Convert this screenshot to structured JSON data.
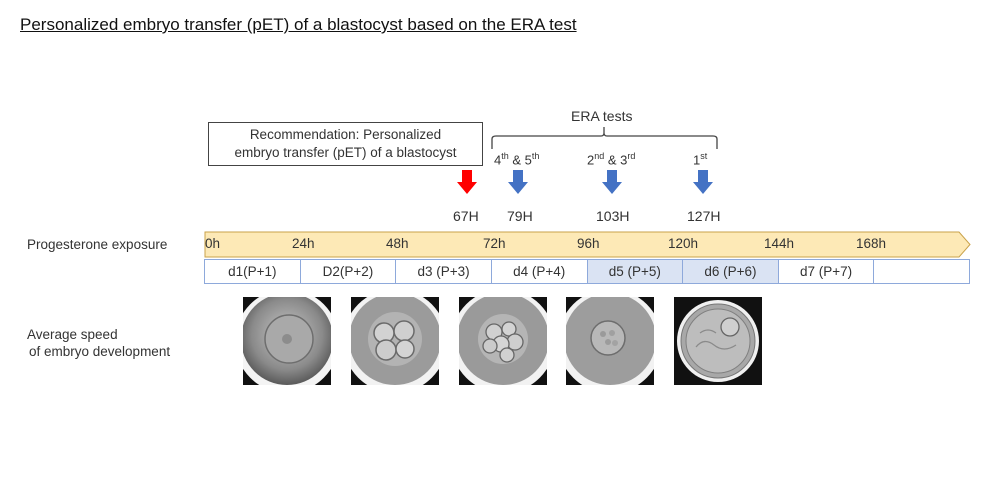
{
  "title": "Personalized embryo transfer (pET) of a blastocyst based on the ERA test",
  "recommendation": {
    "line1": "Recommendation: Personalized",
    "line2": "embryo transfer (pET) of a blastocyst"
  },
  "era": {
    "label": "ERA tests",
    "tests": [
      {
        "a": "4",
        "a_sup": "th",
        "mid": " & 5",
        "b_sup": "th",
        "hour": "79H"
      },
      {
        "a": "2",
        "a_sup": "nd",
        "mid": " & 3",
        "b_sup": "rd",
        "hour": "103H"
      },
      {
        "a": "1",
        "a_sup": "st",
        "mid": "",
        "b_sup": "",
        "hour": "127H"
      }
    ],
    "recommended_hour": "67H"
  },
  "progesterone": {
    "label": "Progesterone exposure",
    "ticks": [
      "0h",
      "24h",
      "48h",
      "72h",
      "96h",
      "120h",
      "144h",
      "168h"
    ]
  },
  "days": [
    {
      "label": "d1(P+1)",
      "highlight": false
    },
    {
      "label": "D2(P+2)",
      "highlight": false
    },
    {
      "label": "d3 (P+3)",
      "highlight": false
    },
    {
      "label": "d4 (P+4)",
      "highlight": false
    },
    {
      "label": "d5 (P+5)",
      "highlight": true
    },
    {
      "label": "d6 (P+6)",
      "highlight": true
    },
    {
      "label": "d7 (P+7)",
      "highlight": false
    },
    {
      "label": "",
      "highlight": false
    }
  ],
  "development": {
    "line1": "Average speed",
    "line2": "of embryo development"
  },
  "colors": {
    "recommended_arrow": "#ff0000",
    "era_arrow": "#4472c4",
    "timeline_fill": "#fde9b6",
    "timeline_border": "#c9a24a",
    "day_border": "#8ea9db",
    "day_highlight": "#dae3f3"
  }
}
